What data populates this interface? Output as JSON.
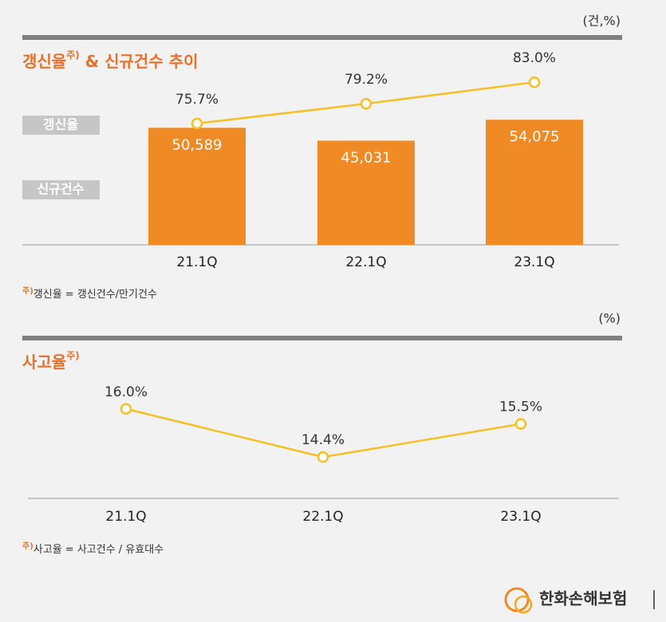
{
  "chart_data": [
    {
      "type": "bar_line",
      "title": "갱신율",
      "title_note": "주)",
      "title_suffix": " & 신규건수 추이",
      "unit": "(건,%)",
      "categories": [
        "21.1Q",
        "22.1Q",
        "23.1Q"
      ],
      "series": [
        {
          "name": "신규건수",
          "type": "bar",
          "color": "#f08a24",
          "values": [
            50589,
            45031,
            54075
          ],
          "value_labels": [
            "50,589",
            "45,031",
            "54,075"
          ]
        },
        {
          "name": "갱신율",
          "type": "line",
          "color": "#f5c023",
          "axis": "y2",
          "values": [
            75.7,
            79.2,
            83.0
          ],
          "value_labels": [
            "75.7%",
            "79.2%",
            "83.0%"
          ]
        }
      ],
      "ylim": [
        0,
        60000
      ],
      "y2lim": [
        60,
        85
      ],
      "footnote_mark": "주)",
      "footnote": "갱신율 = 갱신건수/만기건수"
    },
    {
      "type": "line",
      "title": "사고율",
      "title_note": "주)",
      "unit": "(%)",
      "categories": [
        "21.1Q",
        "22.1Q",
        "23.1Q"
      ],
      "series": [
        {
          "name": "사고율",
          "color": "#f5c023",
          "values": [
            16.0,
            14.4,
            15.5
          ],
          "value_labels": [
            "16.0%",
            "14.4%",
            "15.5%"
          ]
        }
      ],
      "ylim": [
        13,
        17
      ],
      "footnote_mark": "주)",
      "footnote": "사고율 = 사고건수 / 유효대수"
    }
  ],
  "brand": "한화손해보험"
}
